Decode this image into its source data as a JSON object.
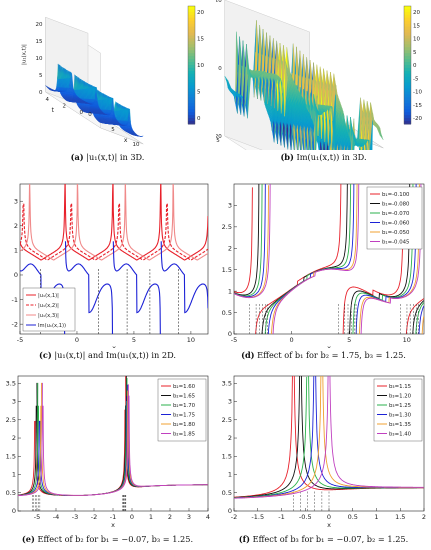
{
  "captions": {
    "a_tag": "(a)",
    "a_text": "|u₁(x,t)| in 3D.",
    "b_tag": "(b)",
    "b_text": "Im(u₁(x,t)) in 3D.",
    "c_tag": "(c)",
    "c_text": "|u₁(x,t)| and Im(u₁(x,t)) in 2D.",
    "d_tag": "(d)",
    "d_text": "Effect of b₁ for b₂ = 1.75,  b₃ = 1.25.",
    "e_tag": "(e)",
    "e_text": "Effect of b₂ for b₁ = −0.07,  b₃ = 1.25.",
    "f_tag": "(f)",
    "f_text": "Effect of b₃ for b₁ = −0.07,  b₂ = 1.25."
  },
  "chart_data": [
    {
      "id": "a",
      "type": "surface",
      "zlabel": "|u₁(x,t)|",
      "xlabel": "x",
      "ylabel": "t",
      "x_ticks": [
        "0",
        "5",
        "10"
      ],
      "t_ticks": [
        "0",
        "2",
        "4"
      ],
      "z_ticks": [
        "0",
        "5",
        "10",
        "15",
        "20"
      ],
      "colorbar": {
        "ticks": [
          "20",
          "15",
          "10",
          "5",
          "0"
        ],
        "colormap": "parula"
      }
    },
    {
      "id": "b",
      "type": "surface",
      "zlabel": "Im(u₁(x,t))",
      "xlabel": "x",
      "ylabel": "t",
      "x_ticks": [
        "-5",
        "0",
        "5"
      ],
      "t_ticks": [
        "5",
        "0",
        "-5"
      ],
      "z_ticks": [
        "-20",
        "0",
        "20"
      ],
      "colorbar": {
        "ticks": [
          "20",
          "15",
          "10",
          "5",
          "0",
          "-5",
          "-10",
          "-15",
          "-20"
        ],
        "colormap": "parula"
      }
    },
    {
      "id": "c",
      "type": "line",
      "xlabel": "x",
      "x_ticks": [
        "-5",
        "0",
        "5",
        "10"
      ],
      "y_ticks": [
        "-2",
        "-1",
        "0",
        "1",
        "2",
        "3"
      ],
      "xlim": [
        -5,
        11.5
      ],
      "ylim": [
        -2.4,
        3.7
      ],
      "legend": "bottom-left",
      "series": [
        {
          "name": "|u₁(x,1)|",
          "color": "#e8202a",
          "dash": "solid",
          "kind": "abs",
          "t": 1
        },
        {
          "name": "|u₁(x,2)|",
          "color": "#e8202a",
          "dash": "dashed",
          "kind": "abs",
          "t": 2
        },
        {
          "name": "|u₁(x,3)|",
          "color": "#f08a8a",
          "dash": "solid",
          "kind": "abs",
          "t": 3
        },
        {
          "name": "Im(u₁(x,1))",
          "color": "#1c22d6",
          "dash": "solid",
          "kind": "im",
          "t": 1
        }
      ]
    },
    {
      "id": "d",
      "type": "line",
      "xlabel": "x",
      "x_ticks": [
        "-5",
        "0",
        "5",
        "10"
      ],
      "y_ticks": [
        "0",
        "0.5",
        "1",
        "1.5",
        "2",
        "2.5",
        "3"
      ],
      "xlim": [
        -5,
        11.5
      ],
      "ylim": [
        0,
        3.5
      ],
      "legend": "top-right",
      "series": [
        {
          "name": "b₁=-0.100",
          "color": "#e8202a",
          "p": -0.1
        },
        {
          "name": "b₁=-0.080",
          "color": "#111111",
          "p": -0.08
        },
        {
          "name": "b₁=-0.070",
          "color": "#2bb24c",
          "p": -0.07
        },
        {
          "name": "b₁=-0.060",
          "color": "#1c22d6",
          "p": -0.06
        },
        {
          "name": "b₁=-0.050",
          "color": "#f0a030",
          "p": -0.05
        },
        {
          "name": "b₁=-0.045",
          "color": "#c040c0",
          "p": -0.045
        }
      ]
    },
    {
      "id": "e",
      "type": "line",
      "xlabel": "x",
      "x_ticks": [
        "-5",
        "-4",
        "-3",
        "-2",
        "-1",
        "0",
        "1",
        "2",
        "3",
        "4"
      ],
      "y_ticks": [
        "0",
        "0.5",
        "1",
        "1.5",
        "2",
        "2.5",
        "3",
        "3.5"
      ],
      "xlim": [
        -6,
        4
      ],
      "ylim": [
        0,
        3.7
      ],
      "legend": "top-right",
      "series": [
        {
          "name": "b₂=1.60",
          "color": "#e8202a",
          "p": 1.6
        },
        {
          "name": "b₂=1.65",
          "color": "#111111",
          "p": 1.65
        },
        {
          "name": "b₂=1.70",
          "color": "#2bb24c",
          "p": 1.7
        },
        {
          "name": "b₂=1.75",
          "color": "#1c22d6",
          "p": 1.75
        },
        {
          "name": "b₂=1.80",
          "color": "#f0a030",
          "p": 1.8
        },
        {
          "name": "b₂=1.85",
          "color": "#c040c0",
          "p": 1.85
        }
      ]
    },
    {
      "id": "f",
      "type": "line",
      "xlabel": "x",
      "x_ticks": [
        "-2",
        "-1.5",
        "-1",
        "-0.5",
        "0",
        "0.5",
        "1",
        "1.5",
        "2"
      ],
      "y_ticks": [
        "0",
        "0.5",
        "1",
        "1.5",
        "2",
        "2.5",
        "3",
        "3.5"
      ],
      "xlim": [
        -2,
        2
      ],
      "ylim": [
        0,
        3.7
      ],
      "legend": "top-right",
      "series": [
        {
          "name": "b₃=1.15",
          "color": "#e8202a",
          "p": 1.15
        },
        {
          "name": "b₃=1.20",
          "color": "#111111",
          "p": 1.2
        },
        {
          "name": "b₃=1.25",
          "color": "#2bb24c",
          "p": 1.25
        },
        {
          "name": "b₃=1.30",
          "color": "#1c22d6",
          "p": 1.3
        },
        {
          "name": "b₃=1.35",
          "color": "#f0a030",
          "p": 1.35
        },
        {
          "name": "b₃=1.40",
          "color": "#c040c0",
          "p": 1.4
        }
      ]
    }
  ]
}
